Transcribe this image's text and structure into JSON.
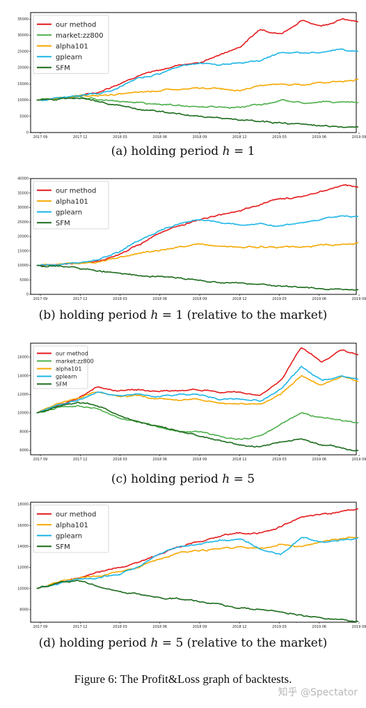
{
  "figure_caption": "Figure 6: The Profit&Loss graph of backtests.",
  "watermark": "知乎 @Spectator",
  "colors": {
    "our method": "#e41a1c",
    "market:zz800": "#4daf4a",
    "alpha101": "#f5a800",
    "gplearn": "#1cb5e6",
    "SFM": "#1a6b1a"
  },
  "panels": [
    {
      "caption_prefix": "(a) holding period ",
      "caption_var": "h",
      "caption_suffix": " = 1"
    },
    {
      "caption_prefix": "(b) holding period ",
      "caption_var": "h",
      "caption_suffix": " = 1 (relative to the market)"
    },
    {
      "caption_prefix": "(c) holding period ",
      "caption_var": "h",
      "caption_suffix": " = 5"
    },
    {
      "caption_prefix": "(d) holding period ",
      "caption_var": "h",
      "caption_suffix": " = 5 (relative to the market)"
    }
  ],
  "chart_data": [
    {
      "type": "line",
      "x_ticks": [
        "2017 09",
        "2017 12",
        "2018 03",
        "2018 06",
        "2018 09",
        "2018 12",
        "2019 03",
        "2019 06",
        "2019 09"
      ],
      "y_ticks": [
        "0",
        "5000",
        "10000",
        "15000",
        "20000",
        "25000",
        "30000",
        "35000"
      ],
      "ylim": [
        0,
        37000
      ],
      "legend_position": "top-left",
      "series": [
        {
          "name": "our method",
          "x": [
            0,
            0.5,
            1,
            1.5,
            2,
            2.5,
            3,
            3.5,
            4,
            4.5,
            5,
            5.5,
            6,
            6.5,
            7,
            7.5,
            7.9
          ],
          "y": [
            10000,
            10600,
            11200,
            12400,
            15000,
            17800,
            19000,
            21000,
            21500,
            24000,
            26500,
            32000,
            30500,
            34500,
            33000,
            35000,
            34000
          ]
        },
        {
          "name": "market:zz800",
          "x": [
            0,
            0.5,
            1,
            1.5,
            2,
            2.5,
            3,
            3.5,
            4,
            4.5,
            5,
            5.5,
            6,
            6.5,
            7,
            7.5,
            7.9
          ],
          "y": [
            10000,
            10500,
            11000,
            10500,
            9800,
            9200,
            8800,
            8300,
            8000,
            7800,
            7800,
            8500,
            10000,
            9300,
            9400,
            9500,
            9200
          ]
        },
        {
          "name": "alpha101",
          "x": [
            0,
            0.5,
            1,
            1.5,
            2,
            2.5,
            3,
            3.5,
            4,
            4.5,
            5,
            5.5,
            6,
            6.5,
            7,
            7.5,
            7.9
          ],
          "y": [
            10000,
            10600,
            11300,
            11300,
            11800,
            12200,
            13000,
            13200,
            13500,
            13600,
            13200,
            14500,
            15000,
            14600,
            15500,
            15800,
            16300
          ]
        },
        {
          "name": "gplearn",
          "x": [
            0,
            0.5,
            1,
            1.5,
            2,
            2.5,
            3,
            3.5,
            4,
            4.5,
            5,
            5.5,
            6,
            6.5,
            7,
            7.5,
            7.9
          ],
          "y": [
            10000,
            10600,
            11300,
            12000,
            14000,
            17000,
            18200,
            20500,
            21500,
            21000,
            21500,
            22200,
            24800,
            24500,
            25000,
            25500,
            25000
          ]
        },
        {
          "name": "SFM",
          "x": [
            0,
            0.5,
            1,
            1.5,
            2,
            2.5,
            3,
            3.5,
            4,
            4.5,
            5,
            5.5,
            6,
            6.5,
            7,
            7.5,
            7.9
          ],
          "y": [
            10000,
            10300,
            10800,
            9500,
            8500,
            7200,
            6500,
            5800,
            5000,
            4200,
            3800,
            3300,
            2900,
            2500,
            2100,
            1800,
            1700
          ]
        }
      ]
    },
    {
      "type": "line",
      "x_ticks": [
        "2017 09",
        "2017 12",
        "2018 03",
        "2018 06",
        "2018 09",
        "2018 12",
        "2019 03",
        "2019 06",
        "2019 09"
      ],
      "y_ticks": [
        "0",
        "5000",
        "10000",
        "15000",
        "20000",
        "25000",
        "30000",
        "35000",
        "40000"
      ],
      "ylim": [
        0,
        40000
      ],
      "legend_position": "top-left",
      "series": [
        {
          "name": "our method",
          "x": [
            0,
            0.5,
            1,
            1.5,
            2,
            2.5,
            3,
            3.5,
            4,
            4.5,
            5,
            5.5,
            6,
            6.5,
            7,
            7.5,
            7.9
          ],
          "y": [
            10000,
            10300,
            10800,
            11500,
            13500,
            17000,
            21000,
            23500,
            26000,
            27500,
            29000,
            31000,
            33000,
            34000,
            35500,
            37500,
            37000
          ]
        },
        {
          "name": "alpha101",
          "x": [
            0,
            0.5,
            1,
            1.5,
            2,
            2.5,
            3,
            3.5,
            4,
            4.5,
            5,
            5.5,
            6,
            6.5,
            7,
            7.5,
            7.9
          ],
          "y": [
            10000,
            10300,
            10800,
            11000,
            12500,
            14000,
            15000,
            16500,
            17300,
            16500,
            16000,
            16500,
            16000,
            16300,
            16800,
            17300,
            17800
          ]
        },
        {
          "name": "gplearn",
          "x": [
            0,
            0.5,
            1,
            1.5,
            2,
            2.5,
            3,
            3.5,
            4,
            4.5,
            5,
            5.5,
            6,
            6.5,
            7,
            7.5,
            7.9
          ],
          "y": [
            10000,
            10400,
            11000,
            11800,
            14500,
            18500,
            22000,
            24500,
            26000,
            25000,
            24000,
            24500,
            23500,
            25000,
            26000,
            27000,
            27000
          ]
        },
        {
          "name": "SFM",
          "x": [
            0,
            0.5,
            1,
            1.5,
            2,
            2.5,
            3,
            3.5,
            4,
            4.5,
            5,
            5.5,
            6,
            6.5,
            7,
            7.5,
            7.9
          ],
          "y": [
            10000,
            9700,
            9300,
            8200,
            7200,
            6600,
            6200,
            5500,
            4800,
            4200,
            3800,
            3300,
            2900,
            2500,
            2200,
            1900,
            1800
          ]
        }
      ]
    },
    {
      "type": "line",
      "x_ticks": [
        "2017 09",
        "2017 12",
        "2018 03",
        "2018 06",
        "2018 09",
        "2018 12",
        "2019 03",
        "2019 06",
        "2019 09"
      ],
      "y_ticks": [
        "6000",
        "8000",
        "10000",
        "12000",
        "14000",
        "16000"
      ],
      "ylim": [
        5500,
        17500
      ],
      "legend_position": "top-left",
      "series": [
        {
          "name": "our method",
          "x": [
            0,
            0.5,
            1,
            1.5,
            2,
            2.5,
            3,
            3.5,
            4,
            4.5,
            5,
            5.5,
            6,
            6.5,
            7,
            7.5,
            7.9
          ],
          "y": [
            10000,
            10800,
            11500,
            12800,
            12300,
            12500,
            12300,
            12400,
            12500,
            12200,
            12200,
            12000,
            13500,
            17000,
            15500,
            16800,
            16200
          ]
        },
        {
          "name": "market:zz800",
          "x": [
            0,
            0.5,
            1,
            1.5,
            2,
            2.5,
            3,
            3.5,
            4,
            4.5,
            5,
            5.5,
            6,
            6.5,
            7,
            7.5,
            7.9
          ],
          "y": [
            10000,
            10500,
            10800,
            10500,
            9500,
            9000,
            8500,
            8000,
            8000,
            7500,
            7200,
            7500,
            8700,
            10000,
            9500,
            9200,
            8900
          ]
        },
        {
          "name": "alpha101",
          "x": [
            0,
            0.5,
            1,
            1.5,
            2,
            2.5,
            3,
            3.5,
            4,
            4.5,
            5,
            5.5,
            6,
            6.5,
            7,
            7.5,
            7.9
          ],
          "y": [
            10000,
            11000,
            11500,
            12300,
            11800,
            11800,
            11500,
            11300,
            11500,
            11000,
            11000,
            10800,
            12000,
            14000,
            13000,
            14000,
            13400
          ]
        },
        {
          "name": "gplearn",
          "x": [
            0,
            0.5,
            1,
            1.5,
            2,
            2.5,
            3,
            3.5,
            4,
            4.5,
            5,
            5.5,
            6,
            6.5,
            7,
            7.5,
            7.9
          ],
          "y": [
            10000,
            10800,
            11300,
            12300,
            11800,
            12000,
            11800,
            12000,
            12000,
            11500,
            11500,
            11300,
            12500,
            15000,
            13500,
            14000,
            13500
          ]
        },
        {
          "name": "SFM",
          "x": [
            0,
            0.5,
            1,
            1.5,
            2,
            2.5,
            3,
            3.5,
            4,
            4.5,
            5,
            5.5,
            6,
            6.5,
            7,
            7.5,
            7.9
          ],
          "y": [
            10000,
            10700,
            11200,
            10800,
            9800,
            9000,
            8500,
            8000,
            7500,
            7000,
            6500,
            6400,
            6800,
            7200,
            6500,
            6200,
            5900
          ]
        }
      ]
    },
    {
      "type": "line",
      "x_ticks": [
        "2017 09",
        "2017 12",
        "2018 03",
        "2018 06",
        "2018 09",
        "2018 12",
        "2019 03",
        "2019 06",
        "2019 09"
      ],
      "y_ticks": [
        "8000",
        "10000",
        "12000",
        "14000",
        "16000",
        "18000"
      ],
      "ylim": [
        6800,
        18200
      ],
      "legend_position": "top-left",
      "series": [
        {
          "name": "our method",
          "x": [
            0,
            0.5,
            1,
            1.5,
            2,
            2.5,
            3,
            3.5,
            4,
            4.5,
            5,
            5.5,
            6,
            6.5,
            7,
            7.5,
            7.9
          ],
          "y": [
            10000,
            10500,
            11000,
            11500,
            12000,
            12500,
            13200,
            14000,
            14500,
            15000,
            15200,
            15300,
            15800,
            16800,
            17000,
            17300,
            17500
          ]
        },
        {
          "name": "alpha101",
          "x": [
            0,
            0.5,
            1,
            1.5,
            2,
            2.5,
            3,
            3.5,
            4,
            4.5,
            5,
            5.5,
            6,
            6.5,
            7,
            7.5,
            7.9
          ],
          "y": [
            10000,
            10600,
            11000,
            11200,
            11500,
            12000,
            12800,
            13400,
            13600,
            13800,
            14000,
            13800,
            14200,
            14000,
            14400,
            14700,
            14900
          ]
        },
        {
          "name": "gplearn",
          "x": [
            0,
            0.5,
            1,
            1.5,
            2,
            2.5,
            3,
            3.5,
            4,
            4.5,
            5,
            5.5,
            6,
            6.5,
            7,
            7.5,
            7.9
          ],
          "y": [
            10000,
            10500,
            10900,
            11000,
            11400,
            12000,
            13300,
            14000,
            14300,
            14500,
            14800,
            13800,
            13200,
            14800,
            14500,
            14600,
            14800
          ]
        },
        {
          "name": "SFM",
          "x": [
            0,
            0.5,
            1,
            1.5,
            2,
            2.5,
            3,
            3.5,
            4,
            4.5,
            5,
            5.5,
            6,
            6.5,
            7,
            7.5,
            7.9
          ],
          "y": [
            10000,
            10500,
            10800,
            10200,
            9800,
            9500,
            9200,
            9000,
            8800,
            8500,
            8200,
            8000,
            7800,
            7500,
            7200,
            7000,
            6800
          ]
        }
      ]
    }
  ]
}
